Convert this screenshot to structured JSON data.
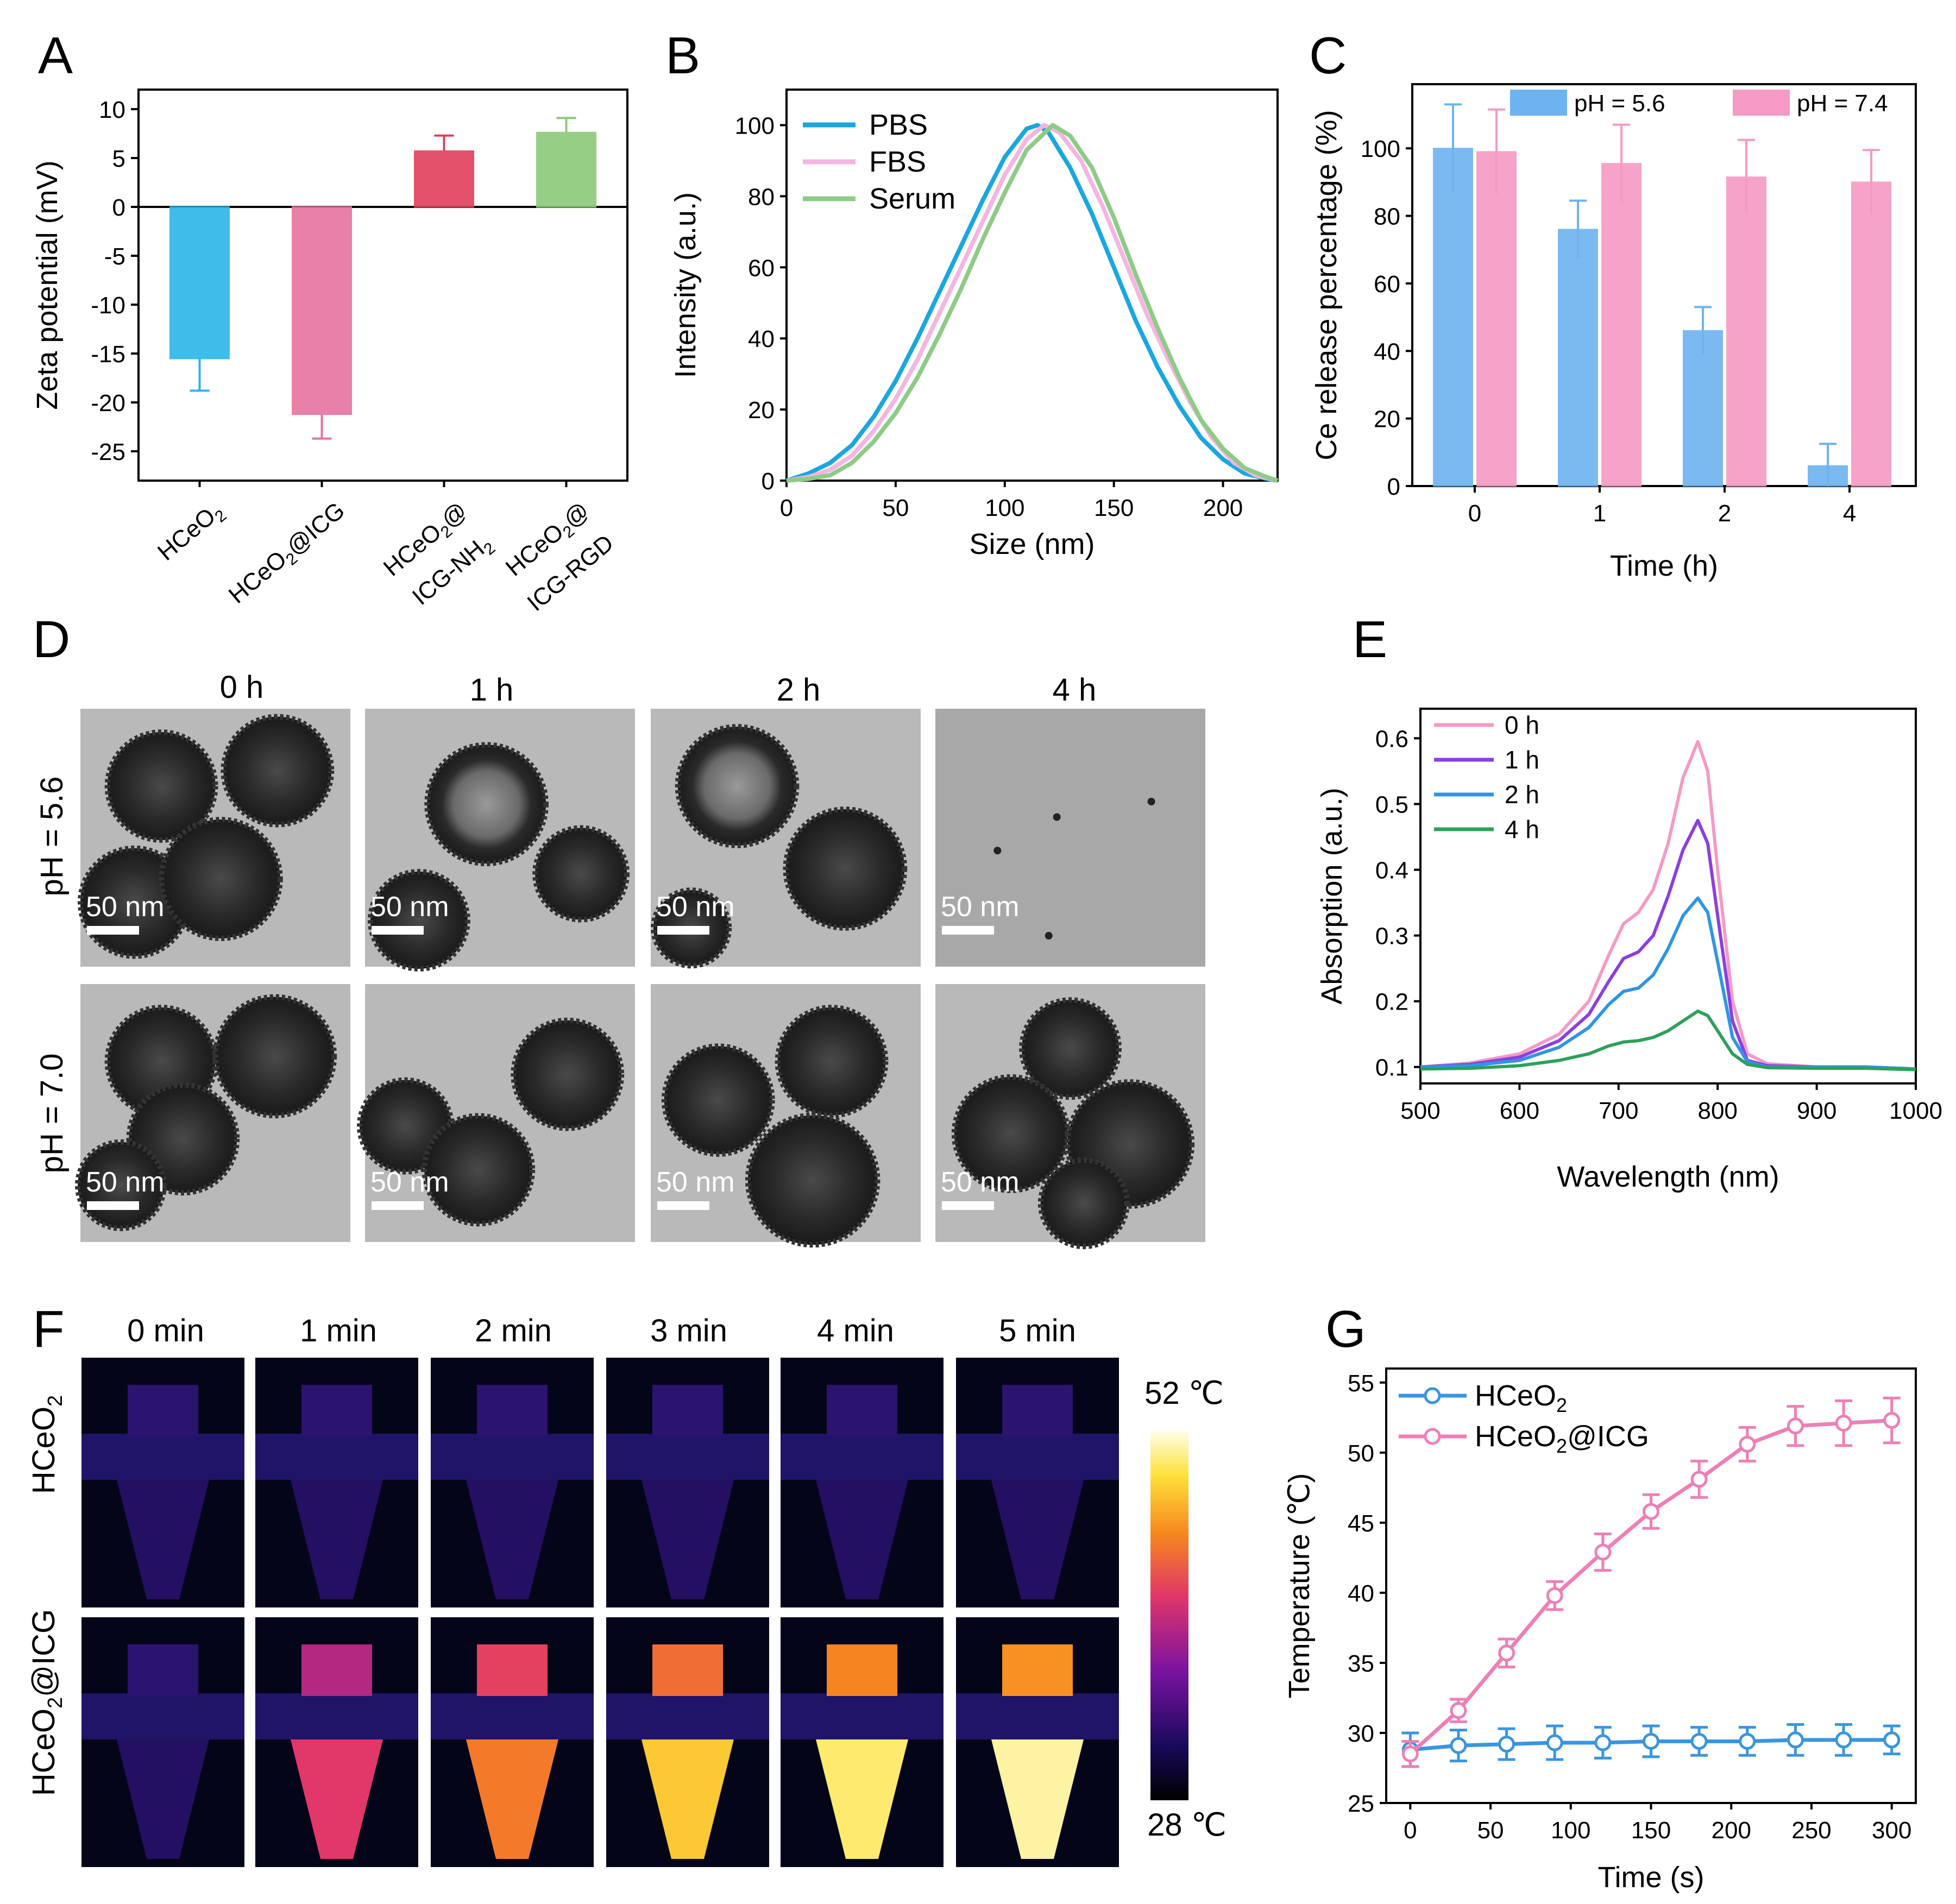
{
  "panel_labels": [
    "A",
    "B",
    "C",
    "D",
    "E",
    "F",
    "G"
  ],
  "chart_data": [
    {
      "panel": "A",
      "type": "bar",
      "ylabel": "Zeta potential (mV)",
      "categories": [
        "HCeO2",
        "HCeO2@ICG",
        "HCeO2@ ICG-NH2",
        "HCeO2@ ICG-RGD"
      ],
      "values": [
        -15.5,
        -21.2,
        5.7,
        7.6
      ],
      "errors": [
        3.3,
        2.5,
        1.6,
        1.5
      ],
      "colors": [
        "#2bb5e8",
        "#e6739f",
        "#e0405a",
        "#8cc97a"
      ],
      "ylim": [
        -28,
        12
      ],
      "yticks": [
        10,
        5,
        0,
        -5,
        -10,
        -15,
        -20,
        -25
      ],
      "ytick_labels": [
        "10",
        "5",
        "0",
        "-5",
        "-10",
        "-15",
        "-20",
        "-25"
      ]
    },
    {
      "panel": "B",
      "type": "line",
      "xlabel": "Size (nm)",
      "ylabel": "Intensity (a.u.)",
      "xlim": [
        0,
        225
      ],
      "ylim": [
        0,
        110
      ],
      "xticks": [
        0,
        50,
        100,
        150,
        200
      ],
      "yticks": [
        0,
        20,
        40,
        60,
        80,
        100
      ],
      "series": [
        {
          "name": "PBS",
          "color": "#1aa7e0",
          "x": [
            0,
            10,
            20,
            30,
            40,
            50,
            60,
            70,
            80,
            90,
            100,
            110,
            115,
            120,
            130,
            140,
            150,
            160,
            170,
            180,
            190,
            200,
            210,
            220,
            225
          ],
          "y": [
            0,
            2,
            5,
            10,
            18,
            28,
            40,
            53,
            66,
            79,
            91,
            99,
            100,
            98,
            88,
            75,
            60,
            45,
            32,
            21,
            12,
            6,
            2,
            0.5,
            0
          ]
        },
        {
          "name": "FBS",
          "color": "#f4b6e0",
          "x": [
            0,
            10,
            20,
            30,
            40,
            50,
            60,
            70,
            80,
            90,
            100,
            110,
            118,
            125,
            135,
            145,
            155,
            165,
            175,
            185,
            195,
            205,
            215,
            225
          ],
          "y": [
            0,
            1,
            3,
            7,
            14,
            23,
            34,
            47,
            60,
            73,
            86,
            96,
            100,
            98,
            90,
            77,
            62,
            47,
            34,
            22,
            12,
            5,
            1.5,
            0
          ]
        },
        {
          "name": "Serum",
          "color": "#8fcb86",
          "x": [
            0,
            10,
            20,
            30,
            40,
            50,
            60,
            70,
            80,
            90,
            100,
            110,
            122,
            130,
            140,
            150,
            160,
            170,
            180,
            190,
            200,
            210,
            220,
            225
          ],
          "y": [
            0,
            0.5,
            1.5,
            5,
            11,
            19,
            29,
            41,
            54,
            68,
            81,
            93,
            100,
            97,
            88,
            74,
            58,
            43,
            29,
            17,
            9,
            3.5,
            1,
            0
          ]
        }
      ]
    },
    {
      "panel": "C",
      "type": "bar",
      "xlabel": "Time (h)",
      "ylabel": "Ce release percentage (%)",
      "categories": [
        "0",
        "1",
        "2",
        "4"
      ],
      "ylim": [
        0,
        119
      ],
      "yticks": [
        0,
        20,
        40,
        60,
        80,
        100
      ],
      "series": [
        {
          "name": "pH = 5.6",
          "color": "#6db3ef",
          "values": [
            100,
            76,
            46,
            6
          ],
          "errors": [
            13,
            8.5,
            7,
            6.5
          ]
        },
        {
          "name": "pH = 7.4",
          "color": "#f59ac4",
          "values": [
            99,
            95.5,
            91.5,
            90
          ],
          "errors": [
            12.5,
            11.5,
            11,
            9.5
          ]
        }
      ]
    },
    {
      "panel": "E",
      "type": "line",
      "xlabel": "Wavelength (nm)",
      "ylabel": "Absorption (a.u.)",
      "xlim": [
        500,
        1000
      ],
      "ylim": [
        0.075,
        0.645
      ],
      "xticks": [
        500,
        600,
        700,
        800,
        900,
        1000
      ],
      "yticks": [
        0.1,
        0.2,
        0.3,
        0.4,
        0.5,
        0.6
      ],
      "series": [
        {
          "name": "0 h",
          "color": "#f59ac4",
          "x": [
            500,
            550,
            600,
            640,
            670,
            690,
            705,
            720,
            735,
            750,
            765,
            780,
            790,
            800,
            815,
            830,
            850,
            900,
            950,
            1000
          ],
          "y": [
            0.1,
            0.106,
            0.12,
            0.15,
            0.2,
            0.27,
            0.318,
            0.335,
            0.37,
            0.44,
            0.54,
            0.595,
            0.55,
            0.4,
            0.2,
            0.12,
            0.105,
            0.1,
            0.1,
            0.097
          ]
        },
        {
          "name": "1 h",
          "color": "#8c3fe0",
          "x": [
            500,
            550,
            600,
            640,
            670,
            690,
            705,
            720,
            735,
            750,
            765,
            780,
            790,
            800,
            815,
            830,
            850,
            900,
            950,
            1000
          ],
          "y": [
            0.1,
            0.104,
            0.115,
            0.14,
            0.18,
            0.23,
            0.265,
            0.275,
            0.3,
            0.36,
            0.43,
            0.475,
            0.44,
            0.33,
            0.17,
            0.11,
            0.102,
            0.1,
            0.1,
            0.097
          ]
        },
        {
          "name": "2 h",
          "color": "#2f95e6",
          "x": [
            500,
            550,
            600,
            640,
            670,
            690,
            705,
            720,
            735,
            750,
            765,
            780,
            790,
            800,
            815,
            830,
            850,
            900,
            950,
            1000
          ],
          "y": [
            0.1,
            0.102,
            0.11,
            0.13,
            0.16,
            0.195,
            0.215,
            0.22,
            0.24,
            0.28,
            0.33,
            0.357,
            0.335,
            0.26,
            0.145,
            0.108,
            0.1,
            0.1,
            0.1,
            0.097
          ]
        },
        {
          "name": "4 h",
          "color": "#2ea05b",
          "x": [
            500,
            550,
            600,
            640,
            670,
            690,
            705,
            720,
            735,
            750,
            765,
            780,
            790,
            800,
            815,
            830,
            850,
            900,
            950,
            1000
          ],
          "y": [
            0.097,
            0.098,
            0.102,
            0.11,
            0.12,
            0.132,
            0.138,
            0.14,
            0.145,
            0.155,
            0.17,
            0.185,
            0.178,
            0.155,
            0.12,
            0.104,
            0.099,
            0.098,
            0.098,
            0.096
          ]
        }
      ]
    },
    {
      "panel": "G",
      "type": "line",
      "xlabel": "Time (s)",
      "ylabel": "Temperature (℃)",
      "xlim": [
        -15,
        315
      ],
      "ylim": [
        25,
        56
      ],
      "xticks": [
        0,
        50,
        100,
        150,
        200,
        250,
        300
      ],
      "yticks": [
        25,
        30,
        35,
        40,
        45,
        50,
        55
      ],
      "series": [
        {
          "name": "HCeO2",
          "color": "#3a95e0",
          "x": [
            0,
            30,
            60,
            90,
            120,
            150,
            180,
            210,
            240,
            270,
            300
          ],
          "y": [
            28.8,
            29.1,
            29.2,
            29.3,
            29.3,
            29.4,
            29.4,
            29.4,
            29.5,
            29.5,
            29.5
          ],
          "errors": [
            1.2,
            1.1,
            1.1,
            1.2,
            1.1,
            1.1,
            1.0,
            1.0,
            1.1,
            1.1,
            1.0
          ]
        },
        {
          "name": "HCeO2@ICG",
          "color": "#ef7fb6",
          "x": [
            0,
            30,
            60,
            90,
            120,
            150,
            180,
            210,
            240,
            270,
            300
          ],
          "y": [
            28.5,
            31.6,
            35.7,
            39.8,
            42.9,
            45.8,
            48.1,
            50.6,
            51.9,
            52.1,
            52.3
          ],
          "errors": [
            0.9,
            0.8,
            1.0,
            1.0,
            1.3,
            1.2,
            1.3,
            1.2,
            1.4,
            1.6,
            1.6
          ]
        }
      ]
    }
  ],
  "panel_A": {
    "category_labels": [
      [
        "HCeO",
        "2",
        ""
      ],
      [
        "HCeO",
        "2",
        "@ICG"
      ],
      [
        "HCeO",
        "2",
        "@",
        "ICG-NH",
        "2"
      ],
      [
        "HCeO",
        "2",
        "@",
        "ICG-RGD"
      ]
    ]
  },
  "panel_D": {
    "time_labels": [
      "0 h",
      "1 h",
      "2 h",
      "4 h"
    ],
    "row_labels": [
      "pH = 5.6",
      "pH = 7.0"
    ],
    "scale_bar": "50 nm"
  },
  "panel_F": {
    "time_labels": [
      "0 min",
      "1 min",
      "2 min",
      "3 min",
      "4 min",
      "5 min"
    ],
    "row_labels": [
      "HCeO2",
      "HCeO2@ICG"
    ],
    "colorbar_max": "52 ℃",
    "colorbar_min": "28 ℃",
    "heating_fractions": [
      0,
      0.55,
      0.72,
      0.86,
      0.93,
      0.96
    ]
  }
}
